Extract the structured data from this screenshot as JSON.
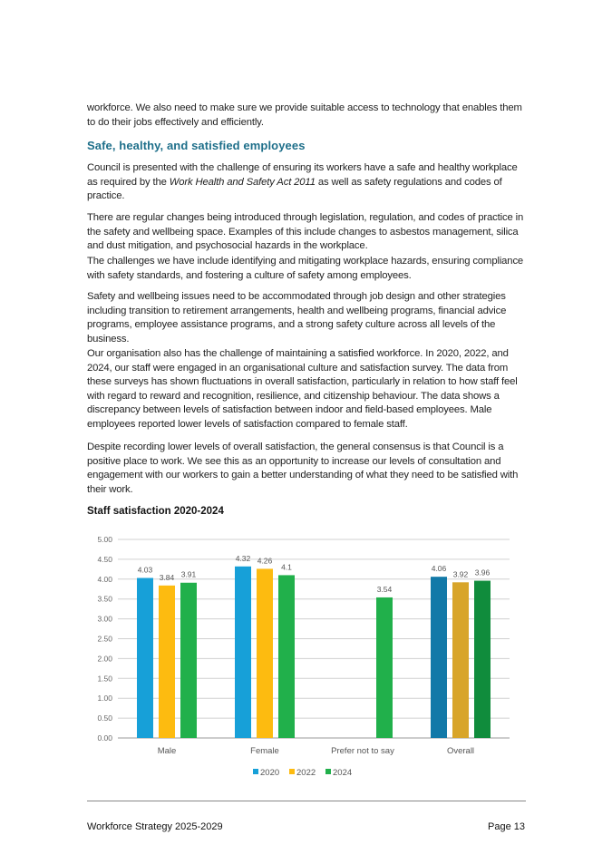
{
  "paragraphs": [
    "workforce. We also need to make sure we provide suitable access to technology that enables them to do their jobs effectively and efficiently.",
    "HEADING",
    "",
    "There are regular changes being introduced through legislation, regulation, and codes of practice in the safety and wellbeing space. Examples of this include changes to asbestos management, silica and dust mitigation, and psychosocial hazards in the workplace.",
    "The challenges we have include identifying and mitigating workplace hazards, ensuring compliance with safety standards, and fostering a culture of safety among employees.",
    "Safety and wellbeing issues need to be accommodated through job design and other strategies including transition to retirement arrangements, health and wellbeing programs, financial advice programs, employee assistance programs, and a strong safety culture across all levels of the business.",
    "Our organisation also has the challenge of maintaining a satisfied workforce. In 2020, 2022, and 2024, our staff were engaged in an organisational culture and satisfaction survey. The data from these surveys has shown fluctuations in overall satisfaction, particularly in relation to how staff feel with regard to reward and recognition, resilience, and citizenship behaviour. The data shows a discrepancy between levels of satisfaction between indoor and field-based employees. Male employees reported lower levels of satisfaction compared to female staff.",
    "Despite recording lower levels of overall satisfaction, the general consensus is that Council is a positive place to work. We see this as an opportunity to increase our levels of consultation and engagement with our workers to gain a better understanding of what they need to be satisfied with their work."
  ],
  "heading": "Safe, healthy, and satisfied employees",
  "council_para": {
    "before": "Council is presented with the challenge of ensuring its workers have a safe and healthy workplace as required by the ",
    "italic": "Work Health and Safety Act 2011",
    "after": " as well as safety regulations and codes of practice."
  },
  "chart_data": {
    "type": "bar",
    "title": "Staff satisfaction 2020-2024",
    "categories": [
      "Male",
      "Female",
      "Prefer not to say",
      "Overall"
    ],
    "series": [
      {
        "name": "2020",
        "values": [
          4.03,
          4.32,
          null,
          4.06
        ],
        "labels": [
          "4.03",
          "4.32",
          "",
          "4.06"
        ],
        "color": "#17a0d8",
        "overall_color": "#1279a8"
      },
      {
        "name": "2022",
        "values": [
          3.84,
          4.26,
          null,
          3.92
        ],
        "labels": [
          "3.84",
          "4.26",
          "",
          "3.92"
        ],
        "color": "#fdbb10",
        "overall_color": "#d8a52a"
      },
      {
        "name": "2024",
        "values": [
          3.91,
          4.1,
          3.54,
          3.96
        ],
        "labels": [
          "3.91",
          "4.1",
          "3.54",
          "3.96"
        ],
        "color": "#21b04b",
        "overall_color": "#108c3c"
      }
    ],
    "ylim": [
      0,
      5
    ],
    "yticks": [
      "0.00",
      "0.50",
      "1.00",
      "1.50",
      "2.00",
      "2.50",
      "3.00",
      "3.50",
      "4.00",
      "4.50",
      "5.00"
    ],
    "grid": true,
    "legend": "bottom"
  },
  "footer": {
    "left": "Workforce Strategy 2025-2029",
    "right": "Page 13"
  }
}
